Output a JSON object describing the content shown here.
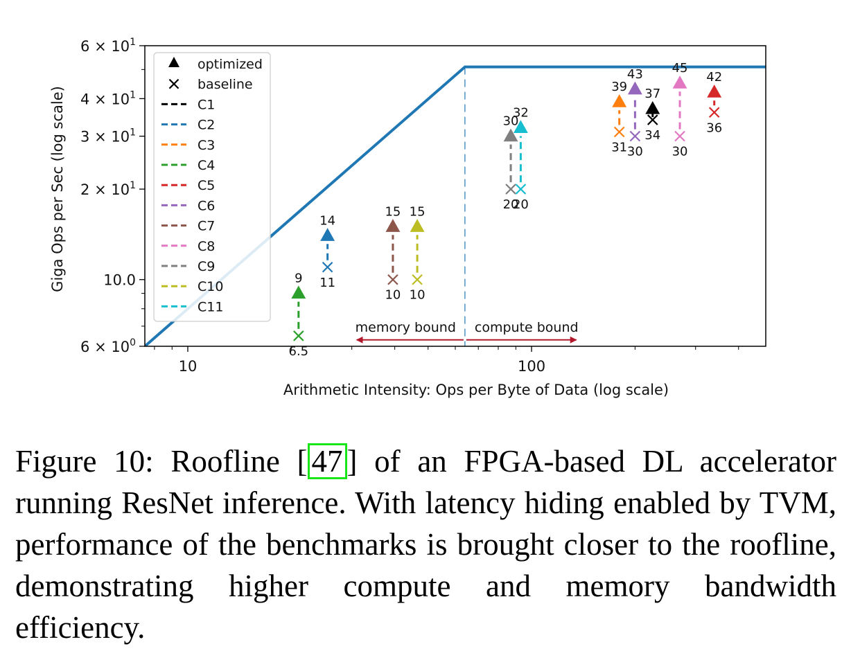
{
  "chart_data": {
    "type": "scatter",
    "xlabel": "Arithmetic Intensity: Ops per Byte of Data (log scale)",
    "ylabel": "Giga Ops per Sec (log scale)",
    "x_scale": "log",
    "y_scale": "log",
    "xlim": [
      7.5,
      480
    ],
    "ylim": [
      6,
      60
    ],
    "x_ticks": [
      {
        "value": 10,
        "label": "10"
      },
      {
        "value": 100,
        "label": "100"
      }
    ],
    "y_ticks": [
      {
        "value": 6,
        "label": "6 × 10",
        "exp": "0"
      },
      {
        "value": 10,
        "label": "10.0",
        "exp": ""
      },
      {
        "value": 20,
        "label": "2 × 10",
        "exp": "1"
      },
      {
        "value": 30,
        "label": "3 × 10",
        "exp": "1"
      },
      {
        "value": 40,
        "label": "4 × 10",
        "exp": "1"
      },
      {
        "value": 60,
        "label": "6 × 10",
        "exp": "1"
      }
    ],
    "roofline": {
      "color": "#1f77b4",
      "points": [
        [
          7.5,
          6
        ],
        [
          64,
          51
        ],
        [
          480,
          51
        ]
      ],
      "ridge_x": 64
    },
    "regions": {
      "memory_label": "memory bound",
      "compute_label": "compute bound",
      "arrow_color": "#b2182b",
      "arrow_y": 6.3,
      "arrow_x_start": 31,
      "arrow_x_end": 135
    },
    "legend": {
      "position": "upper left",
      "markers": [
        {
          "symbol": "triangle",
          "label": "optimized"
        },
        {
          "symbol": "x",
          "label": "baseline"
        }
      ]
    },
    "series": [
      {
        "name": "C1",
        "color": "#000000",
        "x": 225,
        "baseline": 34,
        "optimized": 37
      },
      {
        "name": "C2",
        "color": "#1f77b4",
        "x": 25.5,
        "baseline": 11,
        "optimized": 14
      },
      {
        "name": "C3",
        "color": "#ff7f0e",
        "x": 180,
        "baseline": 31,
        "optimized": 39
      },
      {
        "name": "C4",
        "color": "#2ca02c",
        "x": 21,
        "baseline": 6.5,
        "optimized": 9
      },
      {
        "name": "C5",
        "color": "#d62728",
        "x": 340,
        "baseline": 36,
        "optimized": 42
      },
      {
        "name": "C6",
        "color": "#9467bd",
        "x": 200,
        "baseline": 30,
        "optimized": 43
      },
      {
        "name": "C7",
        "color": "#8c564b",
        "x": 39.5,
        "baseline": 10,
        "optimized": 15
      },
      {
        "name": "C8",
        "color": "#e377c2",
        "x": 270,
        "baseline": 30,
        "optimized": 45
      },
      {
        "name": "C9",
        "color": "#7f7f7f",
        "x": 87,
        "baseline": 20,
        "optimized": 30
      },
      {
        "name": "C10",
        "color": "#bcbd22",
        "x": 46.5,
        "baseline": 10,
        "optimized": 15
      },
      {
        "name": "C11",
        "color": "#17becf",
        "x": 93,
        "baseline": 20,
        "optimized": 32
      }
    ]
  },
  "caption": {
    "prefix": "Figure 10:  Roofline [",
    "ref": "47",
    "suffix": "] of an FPGA-based DL accelerator running ResNet inference.  With latency hiding enabled by TVM, performance of the benchmarks is brought closer to the roofline, demonstrating higher compute and memory bandwidth efficiency."
  }
}
